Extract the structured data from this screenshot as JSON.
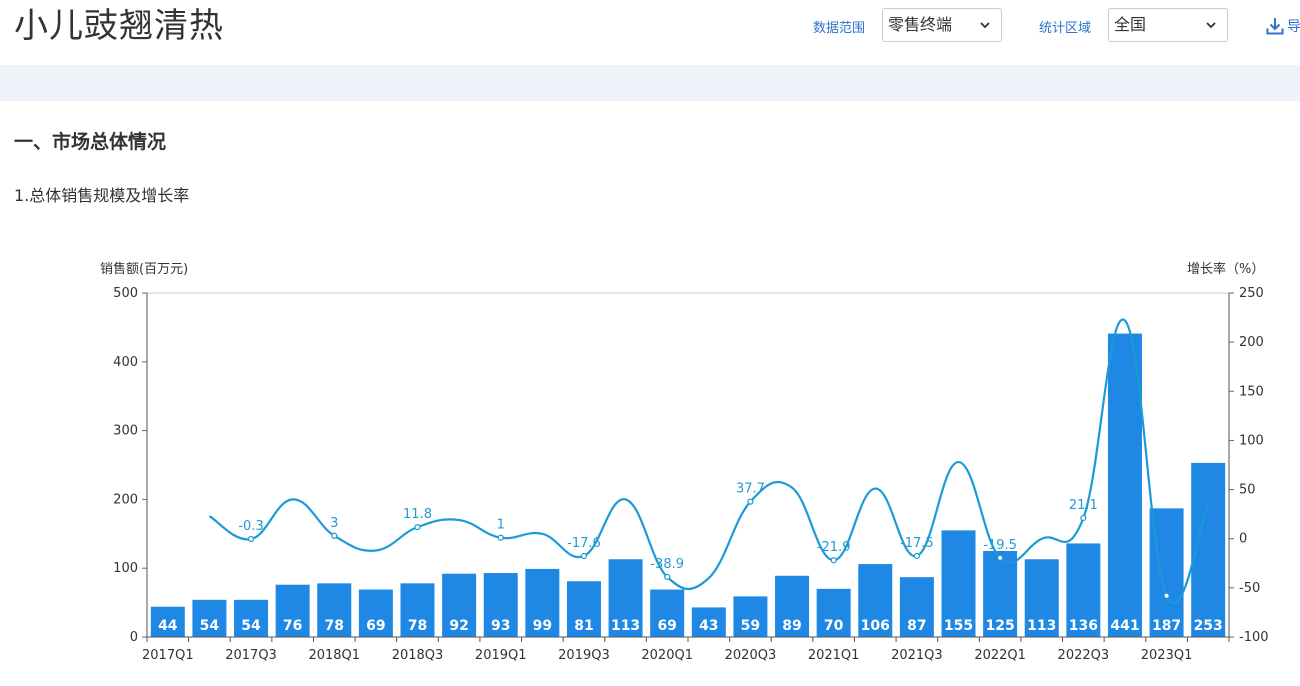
{
  "header": {
    "title": "小儿豉翘清热",
    "filters": [
      {
        "label": "数据范围",
        "value": "零售终端"
      },
      {
        "label": "统计区域",
        "value": "全国"
      }
    ],
    "export_label": "导"
  },
  "section": {
    "title": "一、市场总体情况",
    "subtitle": "1.总体销售规模及增长率"
  },
  "colors": {
    "bar": "#1f88e5",
    "line": "#1a9ad6",
    "link": "#2f73c9",
    "band": "#eef3fa"
  },
  "chart_data": {
    "type": "bar+line",
    "ylabel_left": "销售额(百万元)",
    "ylabel_right": "增长率（%）",
    "ylim_left": [
      0,
      500
    ],
    "yticks_left": [
      "0",
      "100",
      "200",
      "300",
      "400",
      "500"
    ],
    "ylim_right": [
      -100,
      250
    ],
    "yticks_right": [
      "-100",
      "-50",
      "0",
      "50",
      "100",
      "150",
      "200",
      "250"
    ],
    "categories": [
      "2017Q1",
      "2017Q2",
      "2017Q3",
      "2017Q4",
      "2018Q1",
      "2018Q2",
      "2018Q3",
      "2018Q4",
      "2019Q1",
      "2019Q2",
      "2019Q3",
      "2019Q4",
      "2020Q1",
      "2020Q2",
      "2020Q3",
      "2020Q4",
      "2021Q1",
      "2021Q2",
      "2021Q3",
      "2021Q4",
      "2022Q1",
      "2022Q2",
      "2022Q3",
      "2022Q4",
      "2023Q1",
      "2023Q2"
    ],
    "xtick_labels": [
      "2017Q1",
      "2017Q3",
      "2018Q1",
      "2018Q3",
      "2019Q1",
      "2019Q3",
      "2020Q1",
      "2020Q3",
      "2021Q1",
      "2021Q3",
      "2022Q1",
      "2022Q3",
      "2023Q1"
    ],
    "series": [
      {
        "type": "bar",
        "values": [
          44,
          54,
          54,
          76,
          78,
          69,
          78,
          92,
          93,
          99,
          81,
          113,
          69,
          43,
          59,
          89,
          70,
          106,
          87,
          155,
          125,
          113,
          136,
          441,
          187,
          253
        ],
        "labels": [
          "44",
          "54",
          "54",
          "76",
          "78",
          "69",
          "78",
          "92",
          "93",
          "99",
          "81",
          "113",
          "69",
          "43",
          "59",
          "89",
          "70",
          "106",
          "87",
          "155",
          "125",
          "113",
          "136",
          "441",
          "187",
          "253"
        ]
      },
      {
        "type": "line",
        "values": [
          null,
          null,
          null,
          null,
          null,
          null,
          null,
          null,
          null,
          null,
          null,
          null,
          null,
          null,
          null,
          null,
          null,
          null,
          null,
          null,
          null,
          null,
          null,
          null,
          null,
          null
        ],
        "visible_values": [
          null,
          23,
          -0.3,
          40,
          3,
          -12,
          11.8,
          19,
          1,
          5,
          -17.6,
          40,
          -38.9,
          -40,
          37.7,
          52,
          -21.9,
          51,
          -17.5,
          78,
          -19.5,
          0,
          21.1,
          222,
          -58,
          35
        ],
        "point_labels": [
          "",
          "",
          "-0.3",
          "",
          "3",
          "",
          "11.8",
          "",
          "1",
          "",
          "-17.6",
          "",
          "-38.9",
          "",
          "37.7",
          "",
          "-21.9",
          "",
          "-17.5",
          "",
          "-19.5",
          "",
          "21.1",
          "",
          "",
          ""
        ]
      }
    ]
  }
}
